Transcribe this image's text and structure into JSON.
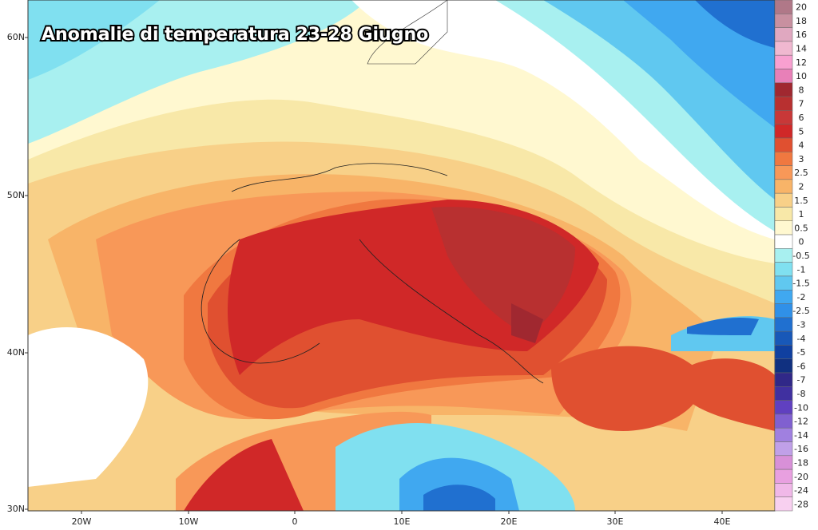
{
  "title": "Anomalie di temperatura 23-28 Giugno",
  "latitude_labels": [
    "60N",
    "50N",
    "40N",
    "30N"
  ],
  "longitude_labels": [
    "20W",
    "10W",
    "0",
    "10E",
    "20E",
    "30E",
    "40E"
  ],
  "colorbar": [
    {
      "label": "20",
      "color": "#b07888"
    },
    {
      "label": "18",
      "color": "#c890a0"
    },
    {
      "label": "16",
      "color": "#e0a8c0"
    },
    {
      "label": "14",
      "color": "#f0b8d0"
    },
    {
      "label": "12",
      "color": "#f8a0d0"
    },
    {
      "label": "10",
      "color": "#e880b8"
    },
    {
      "label": "8",
      "color": "#a02830"
    },
    {
      "label": "7",
      "color": "#b83030"
    },
    {
      "label": "6",
      "color": "#c83838"
    },
    {
      "label": "5",
      "color": "#d02828"
    },
    {
      "label": "4",
      "color": "#e05030"
    },
    {
      "label": "3",
      "color": "#f07840"
    },
    {
      "label": "2.5",
      "color": "#f89858"
    },
    {
      "label": "2",
      "color": "#f8b468"
    },
    {
      "label": "1.5",
      "color": "#f8d088"
    },
    {
      "label": "1",
      "color": "#f8e8a8"
    },
    {
      "label": "0.5",
      "color": "#fff8d0"
    },
    {
      "label": "0",
      "color": "#ffffff"
    },
    {
      "label": "-0.5",
      "color": "#a8f0f0"
    },
    {
      "label": "-1",
      "color": "#80e0f0"
    },
    {
      "label": "-1.5",
      "color": "#60c8f0"
    },
    {
      "label": "-2",
      "color": "#40a8f0"
    },
    {
      "label": "-2.5",
      "color": "#3090e8"
    },
    {
      "label": "-3",
      "color": "#2070d0"
    },
    {
      "label": "-4",
      "color": "#1858b8"
    },
    {
      "label": "-5",
      "color": "#1040a0"
    },
    {
      "label": "-6",
      "color": "#103080"
    },
    {
      "label": "-7",
      "color": "#302888"
    },
    {
      "label": "-8",
      "color": "#4030a0"
    },
    {
      "label": "-10",
      "color": "#6040c0"
    },
    {
      "label": "-12",
      "color": "#8060d0"
    },
    {
      "label": "-14",
      "color": "#a080e0"
    },
    {
      "label": "-16",
      "color": "#c0a0e8"
    },
    {
      "label": "-18",
      "color": "#d890d8"
    },
    {
      "label": "-20",
      "color": "#e8a0e0"
    },
    {
      "label": "-24",
      "color": "#f0b8e8"
    },
    {
      "label": "-28",
      "color": "#f8d0f0"
    }
  ]
}
